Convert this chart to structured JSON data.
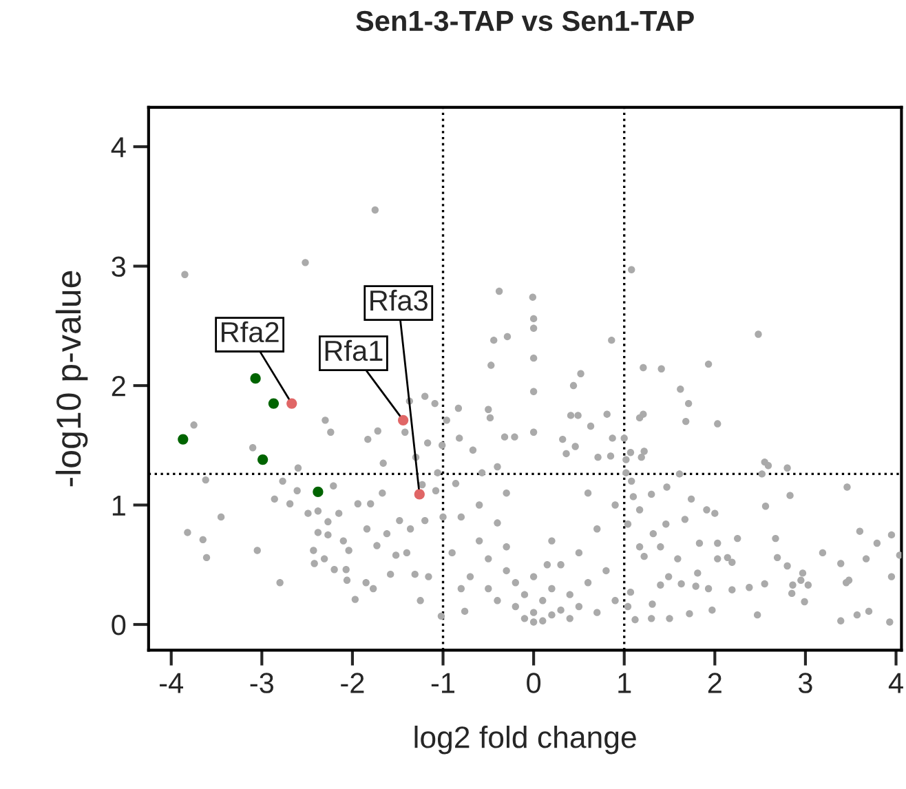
{
  "chart_data": {
    "type": "scatter",
    "title": "Sen1-3-TAP vs Sen1-TAP",
    "xlabel": "log2 fold change",
    "ylabel": "-log10 p-value",
    "xlim": [
      -4.25,
      4.06
    ],
    "ylim": [
      -0.215,
      4.33
    ],
    "xticks": [
      -4,
      -3,
      -2,
      -1,
      0,
      1,
      2,
      3,
      4
    ],
    "yticks": [
      0,
      1,
      2,
      3,
      4
    ],
    "grid": false,
    "legend": false,
    "marker": "circle",
    "ref_lines": [
      {
        "axis": "x",
        "value": -1,
        "label": null,
        "color": "#000000",
        "line_style": "dotted"
      },
      {
        "axis": "x",
        "value": 1,
        "label": null,
        "color": "#000000",
        "line_style": "dotted"
      },
      {
        "axis": "y",
        "value": 1.26,
        "label": null,
        "color": "#000000",
        "line_style": "dotted"
      }
    ],
    "series": [
      {
        "color": "#aaaaaa",
        "x": [
          -3.85,
          -2.52,
          -1.75,
          -0.38,
          -0.44,
          -0.29,
          -0.47,
          1.08,
          -0.01,
          0,
          0,
          0.86,
          0,
          0.52,
          1.21,
          1.41,
          1.93,
          2.48,
          -3.75,
          -3.62,
          -3.45,
          -3.82,
          -3.65,
          -3.61,
          -3.05,
          -3.1,
          -2.8,
          -2.3,
          -2.24,
          -2.6,
          -2.77,
          -2.86,
          -2.69,
          -2.61,
          -2.21,
          -2.49,
          -2.38,
          -2.27,
          -2.15,
          -2.38,
          -2.27,
          -2.43,
          -2.42,
          -2.31,
          -2.2,
          -2.1,
          -2.04,
          -2.07,
          -2.06,
          -1.97,
          -1.94,
          -1.8,
          -1.67,
          -1.83,
          -1.72,
          -1.66,
          -1.42,
          -1.37,
          -1.2,
          -1.09,
          -1.17,
          -1.3,
          -1.23,
          -1.08,
          -1.85,
          -1.77,
          -1.84,
          -1.73,
          -1.62,
          -1.48,
          -1.52,
          -1.58,
          -1.25,
          -1.4,
          -1.36,
          -1.2,
          -1.31,
          -1.16,
          -1.02,
          -1.06,
          -1.01,
          -0.96,
          -0.83,
          -0.82,
          -0.67,
          -0.5,
          -0.48,
          -0.32,
          -0.21,
          -0.4,
          -0.57,
          -0.86,
          -0.76,
          -0.9,
          -0.8,
          -0.7,
          -0.6,
          -0.6,
          -0.5,
          -0.5,
          -0.4,
          -0.4,
          -0.3,
          -0.3,
          -0.2,
          -0.2,
          -0.1,
          -0.1,
          0,
          0,
          0.1,
          0.1,
          0.2,
          0.2,
          0.3,
          0.3,
          0.4,
          0.4,
          0.5,
          0.5,
          0.6,
          0.7,
          0.7,
          0.8,
          0.9,
          0.9,
          -0.8,
          -1.0,
          0.2,
          0.6,
          -0.3,
          0.15,
          0.0,
          1.62,
          1.71,
          1.68,
          2.03,
          2.55,
          2.59,
          2.8,
          2.52,
          1.61,
          3.46,
          2.83,
          2.56,
          1.74,
          2.0,
          1.91,
          3.6,
          3.95,
          3.79,
          4.04,
          3.67,
          3.19,
          3.39,
          2.67,
          2.69,
          2.25,
          2.03,
          1.83,
          2.03,
          2.14,
          2.19,
          2.8,
          2.97,
          2.95,
          3.03,
          2.86,
          2.85,
          2.99,
          3.48,
          3.45,
          3.95,
          2.38,
          2.19,
          2.55,
          2.47,
          3.39,
          3.57,
          3.7,
          3.93,
          1.97,
          1.72,
          1.93,
          1.79,
          1.81,
          1.67,
          1.47,
          1.17,
          1.21,
          0.81,
          0.63,
          0.41,
          0.49,
          0.44,
          0,
          0,
          0.32,
          0.46,
          0.36,
          0.87,
          1.19,
          1.22,
          0.71,
          0.85,
          1.07,
          1.0,
          1.46,
          1.32,
          1.22,
          1.59,
          1.49,
          1.4,
          1.31,
          1.5,
          1.3,
          1.12,
          1.17,
          1.04,
          1.4,
          1.63,
          1.1,
          1.3,
          1.17,
          1.08,
          1.02,
          1.02,
          1.07,
          1.04
        ],
        "values": [
          2.93,
          3.03,
          3.47,
          2.79,
          2.38,
          2.41,
          2.17,
          2.97,
          2.74,
          2.56,
          2.48,
          2.38,
          2.23,
          2.1,
          2.15,
          2.14,
          2.18,
          2.43,
          1.67,
          1.21,
          0.9,
          0.77,
          0.71,
          0.56,
          0.62,
          1.48,
          0.35,
          1.71,
          1.61,
          1.31,
          1.2,
          1.05,
          1.01,
          1.12,
          1.16,
          0.93,
          0.95,
          0.86,
          0.93,
          0.77,
          0.75,
          0.62,
          0.51,
          0.55,
          0.46,
          0.7,
          0.62,
          0.46,
          0.37,
          0.21,
          1.01,
          1.01,
          1.1,
          1.55,
          1.62,
          1.35,
          1.61,
          1.87,
          1.91,
          1.85,
          1.52,
          1.4,
          1.17,
          1.12,
          0.35,
          0.3,
          0.8,
          0.66,
          0.76,
          0.87,
          0.58,
          0.42,
          0.2,
          0.6,
          0.8,
          0.87,
          0.42,
          0.4,
          0.07,
          1.27,
          1.5,
          1.71,
          1.81,
          1.56,
          1.46,
          1.8,
          1.73,
          1.57,
          1.57,
          1.32,
          1.27,
          1.18,
          0.11,
          0.6,
          0.9,
          0.4,
          0.7,
          1.0,
          0.3,
          0.55,
          0.85,
          0.2,
          0.45,
          0.65,
          0.15,
          0.35,
          0.05,
          0.25,
          0.1,
          0.4,
          0.03,
          0.2,
          0.08,
          0.3,
          0.12,
          0.5,
          0.05,
          0.25,
          0.15,
          0.6,
          0.35,
          0.1,
          0.8,
          0.45,
          0.2,
          1.0,
          0.3,
          0.9,
          0.7,
          1.1,
          1.1,
          0.5,
          0.02,
          1.97,
          1.85,
          1.7,
          1.68,
          1.36,
          1.33,
          1.31,
          1.26,
          1.26,
          1.15,
          1.08,
          0.99,
          1.05,
          0.93,
          0.96,
          0.78,
          0.75,
          0.68,
          0.58,
          0.55,
          0.6,
          0.51,
          0.72,
          0.56,
          0.72,
          0.68,
          0.68,
          0.55,
          0.56,
          0.52,
          0.49,
          0.43,
          0.37,
          0.33,
          0.33,
          0.26,
          0.19,
          0.37,
          0.35,
          0.4,
          0.31,
          0.29,
          0.34,
          0.08,
          0.03,
          0.08,
          0.11,
          0.02,
          0.12,
          0.09,
          0.3,
          0.32,
          0.43,
          0.88,
          1.15,
          1.73,
          1.76,
          1.76,
          1.66,
          1.75,
          1.75,
          2.0,
          1.95,
          1.61,
          1.55,
          1.49,
          1.43,
          1.56,
          1.4,
          1.45,
          1.4,
          1.41,
          1.44,
          1.56,
          0.84,
          0.76,
          0.57,
          0.55,
          0.4,
          0.33,
          0.17,
          0.05,
          0.05,
          0.04,
          0.65,
          0.84,
          0.65,
          0.34,
          1.07,
          1.09,
          0.96,
          1.2,
          1.38,
          1.27,
          0.27,
          0.15
        ]
      },
      {
        "color": "#006400",
        "x": [
          -3.07,
          -2.87,
          -3.87,
          -2.99,
          -2.38
        ],
        "values": [
          2.06,
          1.85,
          1.55,
          1.38,
          1.11
        ]
      },
      {
        "color": "#e06666",
        "x": [
          -2.67,
          -1.44,
          -1.26
        ],
        "values": [
          1.85,
          1.71,
          1.09
        ]
      }
    ],
    "annotations": [
      {
        "text": "Rfa2",
        "x": -2.67,
        "y": 1.85
      },
      {
        "text": "Rfa1",
        "x": -1.44,
        "y": 1.71
      },
      {
        "text": "Rfa3",
        "x": -1.26,
        "y": 1.09
      }
    ]
  }
}
